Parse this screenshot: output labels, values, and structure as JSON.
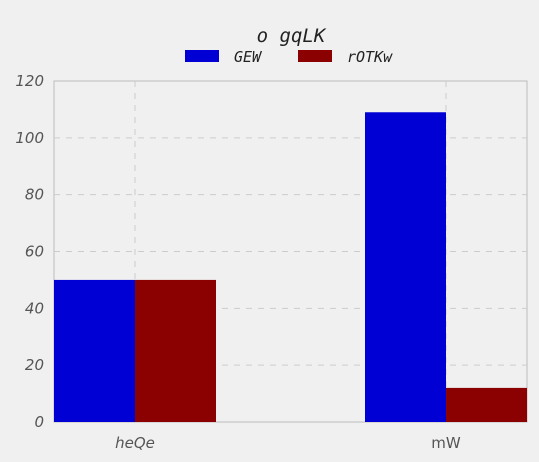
{
  "chart_data": {
    "type": "bar",
    "title": "o  gqLK",
    "categories": [
      "heQe",
      "mW"
    ],
    "series": [
      {
        "name": "GEW",
        "values": [
          50,
          109
        ],
        "color": "#0000d4"
      },
      {
        "name": "rOTKw",
        "values": [
          50,
          12
        ],
        "color": "#8b0000"
      }
    ],
    "xlabel": "",
    "ylabel": "",
    "ylim": [
      0,
      120
    ],
    "yticks": [
      0,
      20,
      40,
      60,
      80,
      100,
      120
    ],
    "grid": true,
    "legend_position": "top-center",
    "colors": {
      "background": "#f0f0f0",
      "plot_border": "#bbbbbb",
      "grid": "#cccccc"
    }
  }
}
